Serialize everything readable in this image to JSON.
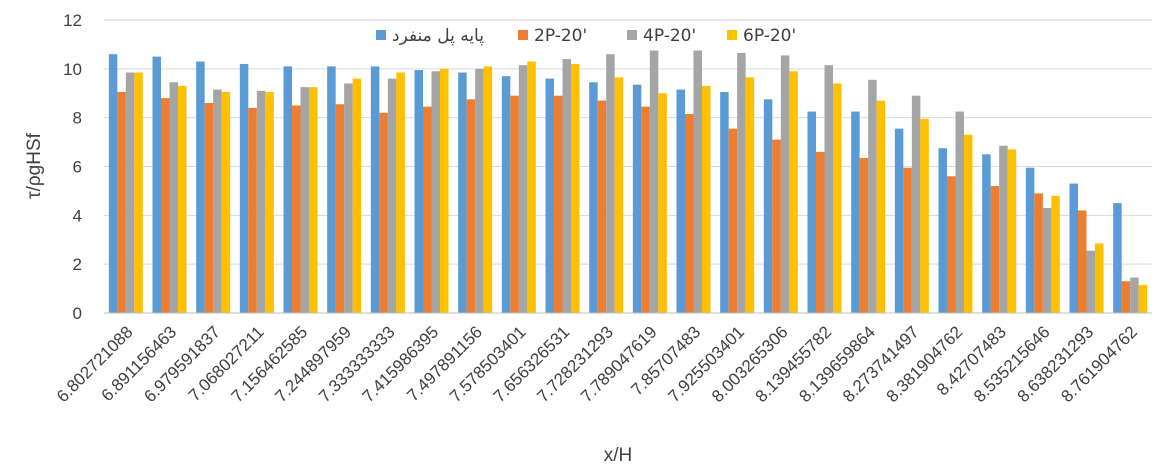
{
  "chart_data": {
    "type": "bar",
    "title": "",
    "xlabel": "x/H",
    "ylabel": "τ/ρgHSf",
    "ylim": [
      0,
      12
    ],
    "yticks": [
      0,
      2,
      4,
      6,
      8,
      10,
      12
    ],
    "grid": false,
    "legend_position": "top",
    "categories": [
      "6.802721088",
      "6.891156463",
      "6.979591837",
      "7.068027211",
      "7.156462585",
      "7.244897959",
      "7.333333333",
      "7.415986395",
      "7.497891156",
      "7.578503401",
      "7.656326531",
      "7.728231293",
      "7.789047619",
      "7.85707483",
      "7.925503401",
      "8.003265306",
      "8.139455782",
      "8.139659864",
      "8.273741497",
      "8.381904762",
      "8.42707483",
      "8.535215646",
      "8.638231293",
      "8.761904762"
    ],
    "series": [
      {
        "name": "پایه پل منفرد",
        "color": "#5b9bd5",
        "values": [
          10.6,
          10.5,
          10.3,
          10.2,
          10.1,
          10.1,
          10.1,
          9.95,
          9.85,
          9.7,
          9.6,
          9.45,
          9.35,
          9.15,
          9.05,
          8.75,
          8.25,
          8.25,
          7.55,
          6.75,
          6.5,
          5.95,
          5.3,
          4.5
        ]
      },
      {
        "name": "2P-20'",
        "color": "#ed7d31",
        "values": [
          9.05,
          8.8,
          8.6,
          8.4,
          8.5,
          8.55,
          8.2,
          8.45,
          8.75,
          8.9,
          8.9,
          8.7,
          8.45,
          8.15,
          7.55,
          7.1,
          6.6,
          6.35,
          5.95,
          5.6,
          5.2,
          4.9,
          4.2,
          1.3
        ]
      },
      {
        "name": "4P-20'",
        "color": "#a5a5a5",
        "values": [
          9.85,
          9.45,
          9.15,
          9.1,
          9.25,
          9.4,
          9.6,
          9.9,
          10.0,
          10.15,
          10.4,
          10.6,
          10.75,
          10.75,
          10.65,
          10.55,
          10.15,
          9.55,
          8.9,
          8.25,
          6.85,
          4.3,
          2.55,
          1.45
        ]
      },
      {
        "name": "6P-20'",
        "color": "#ffc000",
        "values": [
          9.85,
          9.3,
          9.05,
          9.05,
          9.25,
          9.6,
          9.85,
          10.0,
          10.1,
          10.3,
          10.2,
          9.65,
          9.0,
          9.3,
          9.65,
          9.9,
          9.4,
          8.7,
          7.95,
          7.3,
          6.7,
          4.8,
          2.85,
          1.15
        ]
      }
    ]
  }
}
